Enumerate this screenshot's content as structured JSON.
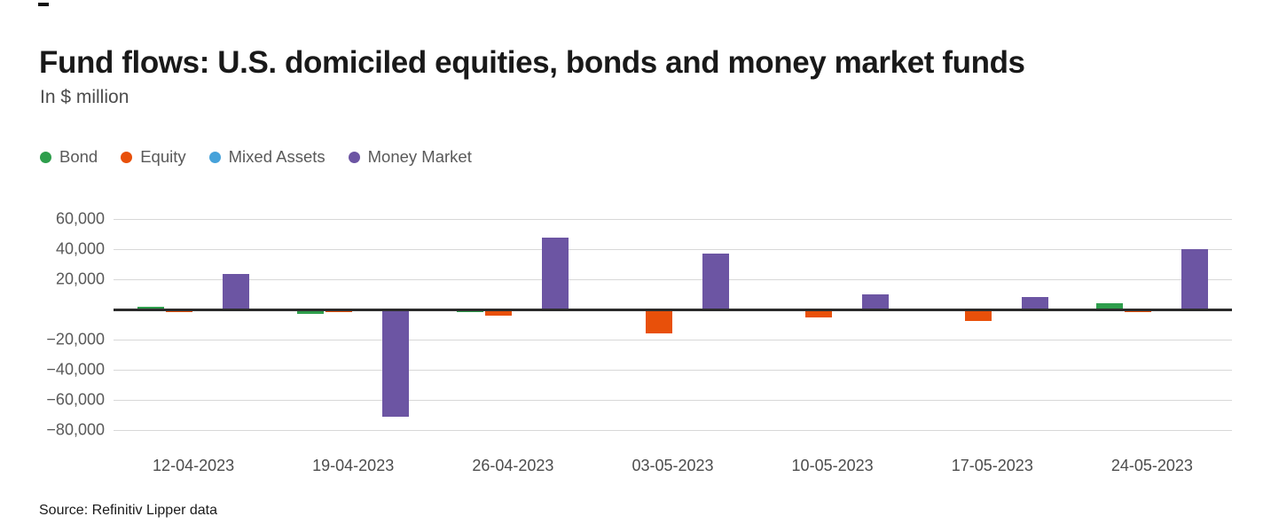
{
  "page": {
    "title": "Fund flows: U.S. domiciled equities, bonds and money market funds",
    "subtitle": "In $ million",
    "source": "Source: Refinitiv Lipper data"
  },
  "colors": {
    "bond": "#2e9e4c",
    "equity": "#e8500a",
    "mixed_assets": "#46a2da",
    "money_market": "#6c55a3",
    "zero_line": "#2b2b2b",
    "gridline": "#d8d8d8"
  },
  "legend": [
    {
      "label": "Bond",
      "color": "#2e9e4c"
    },
    {
      "label": "Equity",
      "color": "#e8500a"
    },
    {
      "label": "Mixed Assets",
      "color": "#46a2da"
    },
    {
      "label": "Money Market",
      "color": "#6c55a3"
    }
  ],
  "chart_data": {
    "type": "bar",
    "title": "Fund flows: U.S. domiciled equities, bonds and money market funds",
    "subtitle": "In $ million",
    "xlabel": "",
    "ylabel": "In $ million",
    "categories": [
      "12-04-2023",
      "19-04-2023",
      "26-04-2023",
      "03-05-2023",
      "10-05-2023",
      "17-05-2023",
      "24-05-2023"
    ],
    "series": [
      {
        "name": "Bond",
        "color": "#2e9e4c",
        "values": [
          2000,
          -3000,
          -1500,
          0,
          0,
          0,
          4000
        ]
      },
      {
        "name": "Equity",
        "color": "#e8500a",
        "values": [
          -1500,
          -2000,
          -4000,
          -16000,
          -5500,
          -7500,
          -2000
        ]
      },
      {
        "name": "Mixed Assets",
        "color": "#46a2da",
        "values": [
          0,
          0,
          0,
          -700,
          0,
          0,
          -1000
        ]
      },
      {
        "name": "Money Market",
        "color": "#6c55a3",
        "values": [
          23500,
          -71000,
          47500,
          37000,
          10000,
          8500,
          40000
        ]
      }
    ],
    "ylim": [
      -80000,
      60000
    ],
    "yticks": [
      60000,
      40000,
      20000,
      -20000,
      -40000,
      -60000,
      -80000
    ],
    "zero_line": true,
    "grid": true,
    "legend_position": "top-left",
    "source": "Source: Refinitiv Lipper data"
  }
}
